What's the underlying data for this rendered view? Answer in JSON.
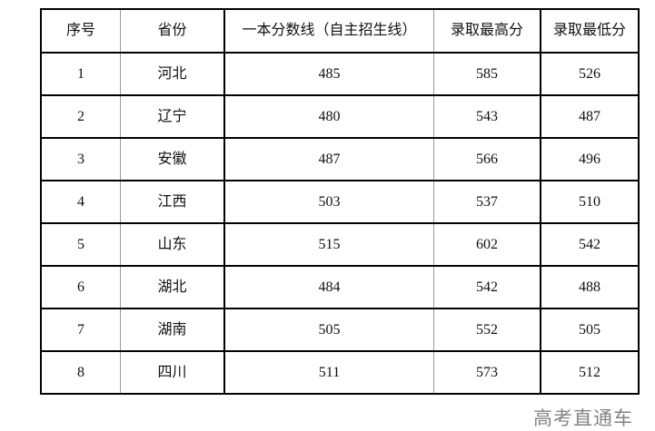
{
  "table": {
    "headers": [
      "序号",
      "省份",
      "一本分数线（自主招生线）",
      "录取最高分",
      "录取最低分"
    ],
    "rows": [
      [
        "1",
        "河北",
        "485",
        "585",
        "526"
      ],
      [
        "2",
        "辽宁",
        "480",
        "543",
        "487"
      ],
      [
        "3",
        "安徽",
        "487",
        "566",
        "496"
      ],
      [
        "4",
        "江西",
        "503",
        "537",
        "510"
      ],
      [
        "5",
        "山东",
        "515",
        "602",
        "542"
      ],
      [
        "6",
        "湖北",
        "484",
        "542",
        "488"
      ],
      [
        "7",
        "湖南",
        "505",
        "552",
        "505"
      ],
      [
        "8",
        "四川",
        "511",
        "573",
        "512"
      ]
    ]
  },
  "watermark": "高考直通车"
}
